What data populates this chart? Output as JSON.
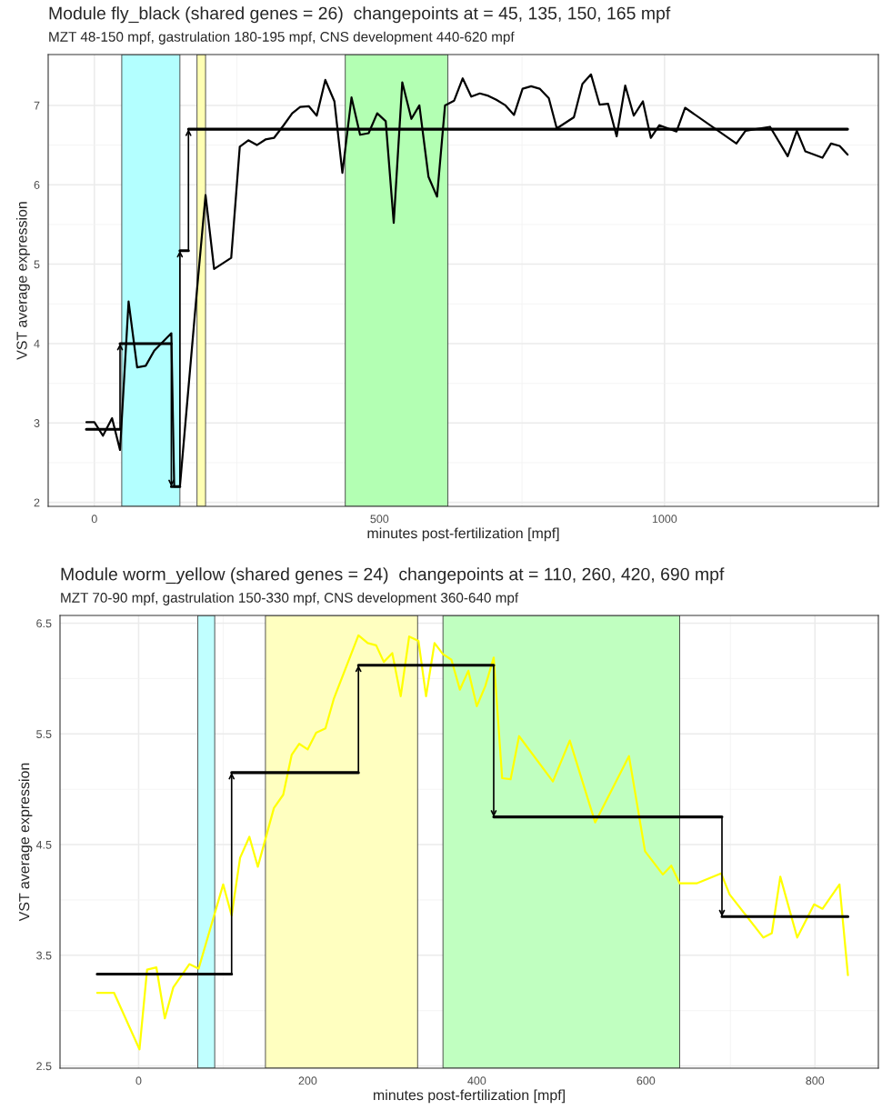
{
  "chart_data": [
    {
      "type": "line",
      "title": "Module fly_black (shared genes = 26)  changepoints at = 45, 135, 150, 165 mpf",
      "subtitle": "MZT 48-150 mpf, gastrulation 180-195 mpf, CNS development 440-620 mpf",
      "xlabel": "minutes post-fertilization [mpf]",
      "ylabel": "VST average expression",
      "xlim": [
        -81,
        1375
      ],
      "ylim": [
        1.95,
        7.64
      ],
      "xticks": [
        0,
        500,
        1000
      ],
      "yticks": [
        2,
        3,
        4,
        5,
        6,
        7
      ],
      "grid": true,
      "marker": "none",
      "line_style": "solid",
      "bands": [
        {
          "axis": "x",
          "from": 48,
          "to": 150,
          "color": "#b3ffff"
        },
        {
          "axis": "x",
          "from": 180,
          "to": 195,
          "color": "#ffffb3"
        },
        {
          "axis": "x",
          "from": 440,
          "to": 620,
          "color": "#b3ffb3"
        }
      ],
      "series": [
        {
          "color": "#000000",
          "x": [
            -14,
            0,
            15,
            31,
            45,
            60,
            75,
            90,
            105,
            135,
            140,
            150,
            180,
            195,
            210,
            240,
            255,
            270,
            285,
            300,
            315,
            332,
            347,
            361,
            376,
            390,
            405,
            421,
            435,
            451,
            466,
            481,
            496,
            511,
            525,
            540,
            556,
            570,
            586,
            601,
            615,
            631,
            646,
            661,
            676,
            691,
            705,
            721,
            736,
            751,
            766,
            781,
            797,
            811,
            841,
            856,
            871,
            886,
            901,
            916,
            931,
            946,
            962,
            976,
            991,
            1021,
            1036,
            1126,
            1142,
            1185,
            1216,
            1232,
            1247,
            1277,
            1292,
            1307,
            1321
          ],
          "values": [
            3.01,
            3.01,
            2.84,
            3.06,
            2.66,
            4.53,
            3.7,
            3.72,
            3.91,
            4.13,
            2.2,
            2.2,
            4.68,
            5.87,
            4.94,
            5.08,
            6.48,
            6.56,
            6.5,
            6.57,
            6.59,
            6.75,
            6.9,
            6.98,
            6.99,
            6.87,
            7.32,
            7.05,
            6.15,
            7.1,
            6.63,
            6.65,
            6.9,
            6.8,
            5.52,
            7.29,
            6.83,
            7.0,
            6.1,
            5.85,
            7.0,
            7.06,
            7.34,
            7.11,
            7.15,
            7.12,
            7.07,
            7.0,
            6.88,
            7.21,
            7.24,
            7.21,
            7.09,
            6.71,
            6.85,
            7.27,
            7.39,
            7.01,
            7.02,
            6.61,
            7.25,
            6.87,
            7.05,
            6.59,
            6.75,
            6.67,
            6.97,
            6.52,
            6.68,
            6.73,
            6.36,
            6.68,
            6.42,
            6.34,
            6.52,
            6.49,
            6.38
          ]
        },
        {
          "type": "step",
          "color": "#000000",
          "x": [
            -14,
            45,
            135,
            150,
            165,
            1321
          ],
          "values": [
            2.92,
            4.0,
            2.2,
            5.17,
            6.7,
            6.7
          ]
        }
      ]
    },
    {
      "type": "line",
      "title": "Module worm_yellow (shared genes = 24)  changepoints at = 110, 260, 420, 690 mpf",
      "subtitle": "MZT 70-90 mpf, gastrulation 150-330 mpf, CNS development 360-640 mpf",
      "xlabel": "minutes post-fertilization [mpf]",
      "ylabel": "VST average expression",
      "xlim": [
        -93,
        875
      ],
      "ylim": [
        2.48,
        6.57
      ],
      "xticks": [
        0,
        200,
        400,
        600,
        800
      ],
      "yticks": [
        2.5,
        3.5,
        4.5,
        5.5,
        6.5
      ],
      "grid": true,
      "marker": "none",
      "line_style": "solid",
      "bands": [
        {
          "axis": "x",
          "from": 70,
          "to": 90,
          "color": "#c0ffff"
        },
        {
          "axis": "x",
          "from": 150,
          "to": 330,
          "color": "#ffffc0"
        },
        {
          "axis": "x",
          "from": 360,
          "to": 640,
          "color": "#c0ffc0"
        }
      ],
      "series": [
        {
          "color": "#ffff00",
          "x": [
            -49,
            -29,
            1,
            10,
            21,
            31,
            41,
            60,
            71,
            100,
            110,
            120,
            131,
            141,
            160,
            171,
            181,
            190,
            200,
            210,
            221,
            231,
            260,
            271,
            281,
            290,
            300,
            310,
            320,
            331,
            340,
            350,
            360,
            370,
            380,
            390,
            400,
            410,
            420,
            430,
            440,
            450,
            490,
            510,
            540,
            580,
            599,
            620,
            630,
            640,
            660,
            689,
            699,
            739,
            749,
            759,
            779,
            799,
            809,
            829,
            839
          ],
          "values": [
            3.16,
            3.16,
            2.65,
            3.37,
            3.39,
            2.93,
            3.21,
            3.42,
            3.38,
            4.14,
            3.86,
            4.38,
            4.57,
            4.3,
            4.83,
            4.95,
            5.31,
            5.41,
            5.36,
            5.51,
            5.55,
            5.82,
            6.39,
            6.32,
            6.3,
            6.15,
            6.23,
            5.84,
            6.38,
            6.34,
            5.84,
            6.32,
            6.22,
            6.17,
            5.9,
            6.07,
            5.75,
            5.93,
            6.19,
            5.1,
            5.09,
            5.48,
            5.07,
            5.44,
            4.7,
            5.3,
            4.44,
            4.23,
            4.31,
            4.15,
            4.15,
            4.24,
            4.05,
            3.66,
            3.7,
            4.21,
            3.66,
            3.96,
            3.92,
            4.14,
            3.32
          ]
        },
        {
          "type": "step",
          "color": "#000000",
          "x": [
            -49,
            110,
            260,
            420,
            690,
            839
          ],
          "values": [
            3.33,
            5.15,
            6.12,
            4.75,
            3.85,
            3.85
          ]
        }
      ]
    }
  ]
}
